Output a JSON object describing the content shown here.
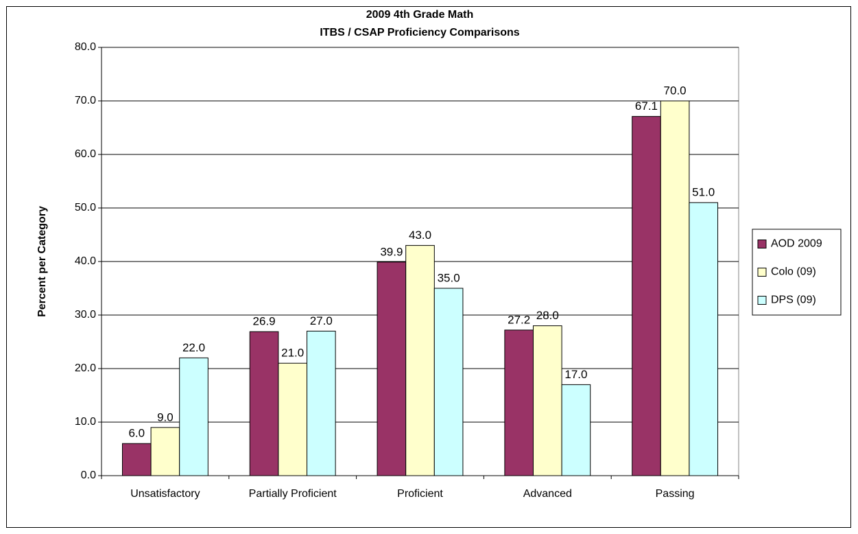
{
  "chart_data": {
    "type": "bar",
    "title": "2009 4th Grade Math",
    "subtitle": "ITBS / CSAP Proficiency Comparisons",
    "y_label": "Percent per Category",
    "categories": [
      "Unsatisfactory",
      "Partially Proficient",
      "Proficient",
      "Advanced",
      "Passing"
    ],
    "series": [
      {
        "name": "AOD 2009",
        "color": "#993366",
        "values": [
          6,
          26.9,
          39.9,
          27.2,
          67.1
        ],
        "value_labels": [
          "6.0",
          "26.9",
          "39.9",
          "27.2",
          "67.1"
        ]
      },
      {
        "name": "Colo (09)",
        "color": "#ffffcc",
        "values": [
          9,
          21,
          43,
          28,
          70
        ],
        "value_labels": [
          "9.0",
          "21.0",
          "43.0",
          "28.0",
          "70.0"
        ]
      },
      {
        "name": "DPS (09)",
        "color": "#ccffff",
        "values": [
          22,
          27,
          35,
          17,
          51
        ],
        "value_labels": [
          "22.0",
          "27.0",
          "35.0",
          "17.0",
          "51.0"
        ]
      }
    ],
    "ylim": [
      0,
      80
    ],
    "yticks": [
      {
        "value": 0,
        "label": "0.0"
      },
      {
        "value": 10,
        "label": "10.0"
      },
      {
        "value": 20,
        "label": "20.0"
      },
      {
        "value": 30,
        "label": "30.0"
      },
      {
        "value": 40,
        "label": "40.0"
      },
      {
        "value": 50,
        "label": "50.0"
      },
      {
        "value": 60,
        "label": "60.0"
      },
      {
        "value": 70,
        "label": "70.0"
      },
      {
        "value": 80,
        "label": "80.0"
      }
    ],
    "grid": true,
    "legend": "right"
  }
}
